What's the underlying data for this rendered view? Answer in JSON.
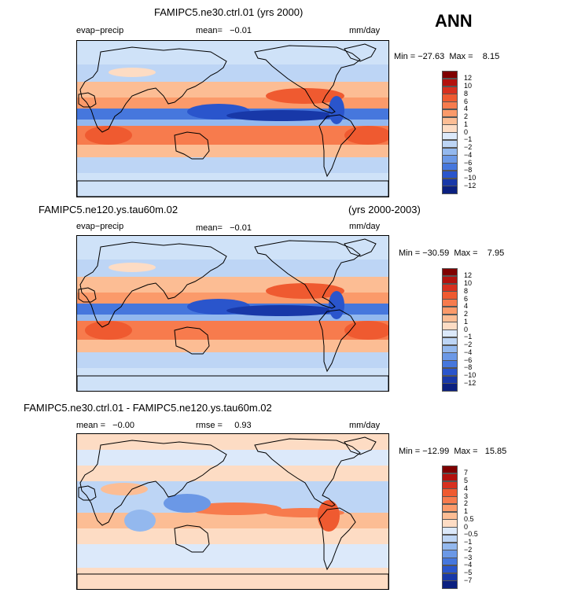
{
  "header": {
    "season": "ANN"
  },
  "chart_data": [
    {
      "type": "heatmap",
      "title": "FAMIPC5.ne30.ctrl.01 (yrs 2000)",
      "variable": "evap−precip",
      "mean_text": "mean=   −0.01",
      "units": "mm/day",
      "min_max": "Min = −27.63  Max =    8.15",
      "colorbar_levels": [
        "12",
        "10",
        "8",
        "6",
        "4",
        "2",
        "1",
        "0",
        "−1",
        "−2",
        "−4",
        "−6",
        "−8",
        "−10",
        "−12"
      ]
    },
    {
      "type": "heatmap",
      "title_left": "FAMIPC5.ne120.ys.tau60m.02",
      "title_right": "(yrs 2000-2003)",
      "variable": "evap−precip",
      "mean_text": "mean=   −0.01",
      "units": "mm/day",
      "min_max": "Min = −30.59  Max =    7.95",
      "colorbar_levels": [
        "12",
        "10",
        "8",
        "6",
        "4",
        "2",
        "1",
        "0",
        "−1",
        "−2",
        "−4",
        "−6",
        "−8",
        "−10",
        "−12"
      ]
    },
    {
      "type": "heatmap",
      "title": "FAMIPC5.ne30.ctrl.01 - FAMIPC5.ne120.ys.tau60m.02",
      "mean_text": "mean =   −0.00",
      "rmse_text": "rmse =     0.93",
      "units": "mm/day",
      "min_max": "Min = −12.99  Max =   15.85",
      "colorbar_levels": [
        "7",
        "5",
        "4",
        "3",
        "2",
        "1",
        "0.5",
        "0",
        "−0.5",
        "−1",
        "−2",
        "−3",
        "−4",
        "−5",
        "−7"
      ]
    }
  ],
  "colors": {
    "red_scale": [
      "#7f0000",
      "#b3120e",
      "#d7301f",
      "#ef5a30",
      "#f77b4d",
      "#fb9a6a",
      "#fcbd94",
      "#fddcc4"
    ],
    "blue_scale": [
      "#dce9fa",
      "#bdd5f5",
      "#93b8ee",
      "#6b98e6",
      "#4677dd",
      "#2a55cc",
      "#1838a8",
      "#0b2080"
    ],
    "map_background": "#cfe2f8",
    "coast": "#000000"
  }
}
